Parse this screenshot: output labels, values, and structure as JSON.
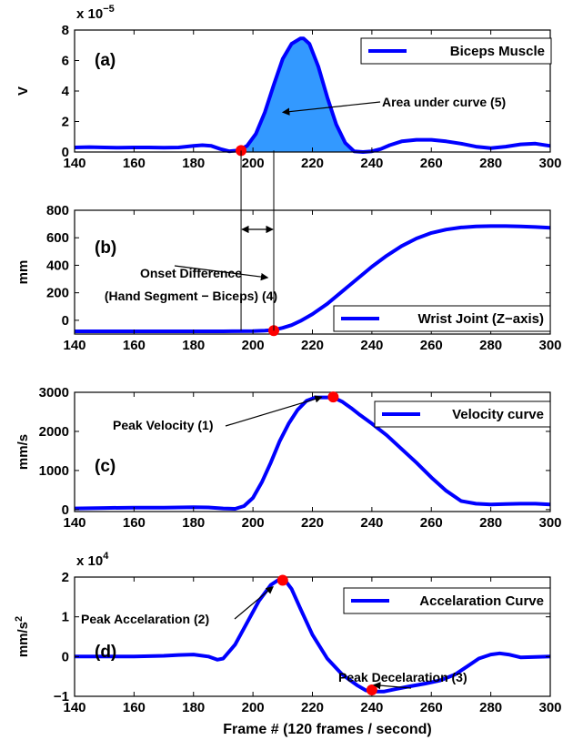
{
  "figure": {
    "xlabel": "Frame # (120 frames / second)"
  },
  "chart_data": [
    {
      "id": "a",
      "type": "area",
      "panel_label": "(a)",
      "ylabel": "V",
      "exponent_prefix": "x 10",
      "exponent": "−5",
      "xlim": [
        140,
        300
      ],
      "ylim": [
        0,
        8
      ],
      "xticks": [
        140,
        160,
        180,
        200,
        220,
        240,
        260,
        280,
        300
      ],
      "yticks": [
        0,
        2,
        4,
        6,
        8
      ],
      "series": [
        {
          "name": "Biceps Muscle",
          "color": "#0000ff",
          "x": [
            140,
            145,
            150,
            155,
            160,
            165,
            170,
            175,
            180,
            183,
            186,
            189,
            192,
            195,
            198,
            201,
            204,
            207,
            210,
            213,
            216,
            217,
            219,
            222,
            225,
            228,
            231,
            234,
            237,
            240,
            243,
            246,
            250,
            255,
            260,
            265,
            270,
            275,
            280,
            285,
            290,
            295,
            300
          ],
          "y": [
            0.3,
            0.32,
            0.3,
            0.28,
            0.3,
            0.3,
            0.28,
            0.3,
            0.4,
            0.45,
            0.4,
            0.2,
            0.05,
            0.1,
            0.4,
            1.2,
            2.6,
            4.4,
            6.1,
            7.1,
            7.45,
            7.45,
            7.1,
            5.6,
            3.6,
            1.8,
            0.6,
            0.05,
            0.0,
            0.05,
            0.2,
            0.45,
            0.7,
            0.8,
            0.8,
            0.7,
            0.55,
            0.35,
            0.25,
            0.35,
            0.5,
            0.55,
            0.4
          ]
        }
      ],
      "shaded_region": {
        "x_from": 196,
        "x_to": 236,
        "fill": "#3399ff"
      },
      "markers": [
        {
          "x": 196,
          "y": 0.1
        }
      ],
      "annotations": [
        {
          "text": "Area under curve (5)",
          "arrow_to": {
            "x": 210,
            "y": 2.6
          }
        }
      ],
      "legend_position": "top-right"
    },
    {
      "id": "b",
      "type": "line",
      "panel_label": "(b)",
      "ylabel": "mm",
      "xlim": [
        140,
        300
      ],
      "ylim": [
        -100,
        800
      ],
      "xticks": [
        140,
        160,
        180,
        200,
        220,
        240,
        260,
        280,
        300
      ],
      "yticks": [
        0,
        200,
        400,
        600,
        800
      ],
      "series": [
        {
          "name": "Wrist Joint (Z−axis)",
          "color": "#0000ff",
          "x": [
            140,
            150,
            160,
            170,
            180,
            190,
            200,
            204,
            207,
            210,
            213,
            216,
            220,
            225,
            230,
            235,
            240,
            245,
            250,
            255,
            260,
            265,
            270,
            275,
            280,
            285,
            290,
            295,
            300
          ],
          "y": [
            -80,
            -80,
            -80,
            -80,
            -80,
            -80,
            -78,
            -75,
            -70,
            -55,
            -35,
            -5,
            45,
            120,
            210,
            300,
            390,
            470,
            540,
            595,
            635,
            660,
            675,
            682,
            685,
            685,
            682,
            678,
            672
          ]
        }
      ],
      "markers": [
        {
          "x": 207,
          "y": -75
        }
      ],
      "annotations": [
        {
          "text": "Onset Difference",
          "arrow_to": {
            "x": 205,
            "y": 310
          }
        },
        {
          "text": "(Hand Segment − Biceps) (4)"
        }
      ],
      "onset_lines_x": [
        196,
        207
      ],
      "legend_position": "bottom-right"
    },
    {
      "id": "c",
      "type": "line",
      "panel_label": "(c)",
      "ylabel": "mm/s",
      "xlim": [
        140,
        300
      ],
      "ylim": [
        -50,
        3000
      ],
      "xticks": [
        140,
        160,
        180,
        200,
        220,
        240,
        260,
        280,
        300
      ],
      "yticks": [
        0,
        1000,
        2000,
        3000
      ],
      "series": [
        {
          "name": "Velocity curve",
          "color": "#0000ff",
          "x": [
            140,
            150,
            160,
            170,
            180,
            185,
            190,
            194,
            197,
            200,
            203,
            206,
            209,
            212,
            215,
            218,
            221,
            224,
            227,
            230,
            233,
            236,
            240,
            245,
            250,
            255,
            260,
            265,
            270,
            275,
            280,
            285,
            290,
            295,
            300
          ],
          "y": [
            30,
            40,
            50,
            50,
            60,
            55,
            30,
            20,
            90,
            300,
            700,
            1200,
            1750,
            2200,
            2550,
            2780,
            2870,
            2870,
            2870,
            2760,
            2600,
            2420,
            2200,
            1900,
            1550,
            1200,
            820,
            480,
            220,
            150,
            130,
            140,
            150,
            150,
            130
          ]
        }
      ],
      "markers": [
        {
          "x": 227,
          "y": 2880
        }
      ],
      "annotations": [
        {
          "text": "Peak Velocity (1)",
          "arrow_to": {
            "x": 225,
            "y": 2880
          }
        }
      ],
      "legend_position": "top-right"
    },
    {
      "id": "d",
      "type": "line",
      "panel_label": "(d)",
      "ylabel": "mm/s",
      "ylabel_superscript": "2",
      "exponent_prefix": "x 10",
      "exponent": "4",
      "xlim": [
        140,
        300
      ],
      "ylim": [
        -1,
        2
      ],
      "xticks": [
        140,
        160,
        180,
        200,
        220,
        240,
        260,
        280,
        300
      ],
      "yticks": [
        -1,
        0,
        1,
        2
      ],
      "series": [
        {
          "name": "Accelaration Curve",
          "color": "#0000ff",
          "x": [
            140,
            150,
            160,
            170,
            175,
            180,
            185,
            188,
            190,
            194,
            198,
            202,
            206,
            209,
            211,
            213,
            216,
            220,
            225,
            230,
            235,
            238,
            241,
            244,
            248,
            252,
            258,
            263,
            268,
            272,
            276,
            280,
            283,
            286,
            290,
            295,
            300
          ],
          "y": [
            0,
            0,
            0,
            0.02,
            0.04,
            0.05,
            0.0,
            -0.08,
            -0.05,
            0.3,
            0.85,
            1.4,
            1.8,
            1.95,
            1.9,
            1.7,
            1.2,
            0.55,
            -0.05,
            -0.45,
            -0.72,
            -0.85,
            -0.88,
            -0.88,
            -0.82,
            -0.76,
            -0.68,
            -0.6,
            -0.45,
            -0.25,
            -0.05,
            0.05,
            0.08,
            0.05,
            -0.02,
            -0.01,
            0.0
          ]
        }
      ],
      "markers": [
        {
          "x": 210,
          "y": 1.92
        },
        {
          "x": 240,
          "y": -0.84
        }
      ],
      "annotations": [
        {
          "text": "Peak Accelaration (2)",
          "arrow_to": {
            "x": 208,
            "y": 1.85
          }
        },
        {
          "text": "Peak Decelaration (3)",
          "arrow_to": {
            "x": 240,
            "y": -0.76
          }
        }
      ],
      "legend_position": "top-right"
    }
  ]
}
